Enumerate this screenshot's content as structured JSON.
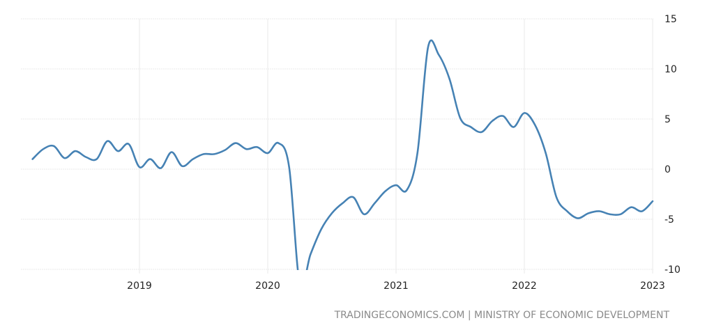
{
  "chart_data": {
    "type": "line",
    "title": "",
    "xlabel": "",
    "ylabel": "",
    "ylim": [
      -10,
      15
    ],
    "y_ticks": [
      "15",
      "10",
      "5",
      "0",
      "-5",
      "-10"
    ],
    "x_ticks": [
      "2019",
      "2020",
      "2021",
      "2022",
      "2023"
    ],
    "y_axis_position": "right",
    "grid": true,
    "line_color": "#4682b4",
    "x": [
      "2018-03",
      "2018-04",
      "2018-05",
      "2018-06",
      "2018-07",
      "2018-08",
      "2018-09",
      "2018-10",
      "2018-11",
      "2018-12",
      "2019-01",
      "2019-02",
      "2019-03",
      "2019-04",
      "2019-05",
      "2019-06",
      "2019-07",
      "2019-08",
      "2019-09",
      "2019-10",
      "2019-11",
      "2019-12",
      "2020-01",
      "2020-02",
      "2020-03",
      "2020-04",
      "2020-05",
      "2020-06",
      "2020-07",
      "2020-08",
      "2020-09",
      "2020-10",
      "2020-11",
      "2020-12",
      "2021-01",
      "2021-02",
      "2021-03",
      "2021-04",
      "2021-05",
      "2021-06",
      "2021-07",
      "2021-08",
      "2021-09",
      "2021-10",
      "2021-11",
      "2021-12",
      "2022-01",
      "2022-02",
      "2022-03",
      "2022-04",
      "2022-05",
      "2022-06",
      "2022-07",
      "2022-08",
      "2022-09",
      "2022-10",
      "2022-11",
      "2022-12",
      "2023-01"
    ],
    "values": [
      1.0,
      2.0,
      2.3,
      1.1,
      1.8,
      1.2,
      1.0,
      2.8,
      1.8,
      2.5,
      0.2,
      1.0,
      0.1,
      1.7,
      0.3,
      1.0,
      1.5,
      1.5,
      1.9,
      2.6,
      2.0,
      2.2,
      1.6,
      2.6,
      0.2,
      -11.5,
      -8.5,
      -6.0,
      -4.4,
      -3.4,
      -2.8,
      -4.5,
      -3.4,
      -2.2,
      -1.6,
      -2.1,
      1.6,
      12.2,
      11.4,
      9.0,
      5.1,
      4.2,
      3.7,
      4.8,
      5.3,
      4.2,
      5.6,
      4.4,
      1.6,
      -2.8,
      -4.2,
      -4.9,
      -4.4,
      -4.2,
      -4.5,
      -4.5,
      -3.8,
      -4.2,
      -3.2
    ]
  },
  "source": "TRADINGECONOMICS.COM | MINISTRY OF ECONOMIC DEVELOPMENT"
}
